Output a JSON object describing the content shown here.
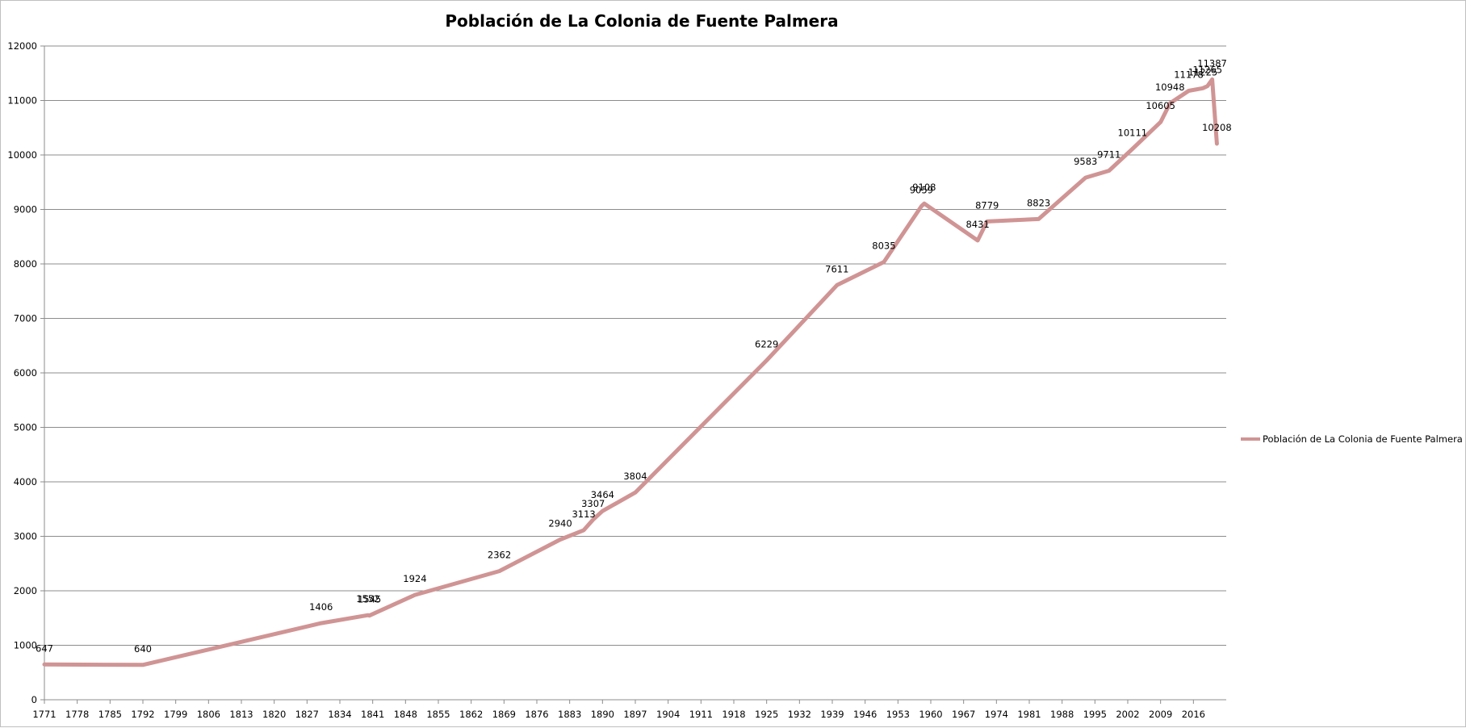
{
  "chart_data": {
    "type": "line",
    "title": "Población de La Colonia de Fuente Palmera",
    "xlabel": "",
    "ylabel": "",
    "xlim": [
      1771,
      2023
    ],
    "ylim": [
      0,
      12000
    ],
    "y_ticks": [
      0,
      1000,
      2000,
      3000,
      4000,
      5000,
      6000,
      7000,
      8000,
      9000,
      10000,
      11000,
      12000
    ],
    "x_ticks": [
      1771,
      1778,
      1785,
      1792,
      1799,
      1806,
      1813,
      1820,
      1827,
      1834,
      1841,
      1848,
      1855,
      1862,
      1869,
      1876,
      1883,
      1890,
      1897,
      1904,
      1911,
      1918,
      1925,
      1932,
      1939,
      1946,
      1953,
      1960,
      1967,
      1974,
      1981,
      1988,
      1995,
      2002,
      2009,
      2016
    ],
    "grid": true,
    "legend": "right",
    "line_color": "#d09494",
    "series": [
      {
        "name": "Población de La Colonia de Fuente Palmera",
        "points": [
          {
            "x": 1771,
            "y": 647
          },
          {
            "x": 1792,
            "y": 640
          },
          {
            "x": 1830,
            "y": 1406
          },
          {
            "x": 1840,
            "y": 1552
          },
          {
            "x": 1840.3,
            "y": 1545
          },
          {
            "x": 1850,
            "y": 1924
          },
          {
            "x": 1868,
            "y": 2362
          },
          {
            "x": 1881,
            "y": 2940
          },
          {
            "x": 1886,
            "y": 3113
          },
          {
            "x": 1888,
            "y": 3307
          },
          {
            "x": 1890,
            "y": 3464
          },
          {
            "x": 1897,
            "y": 3804
          },
          {
            "x": 1925,
            "y": 6229
          },
          {
            "x": 1940,
            "y": 7611
          },
          {
            "x": 1950,
            "y": 8035
          },
          {
            "x": 1958,
            "y": 9059
          },
          {
            "x": 1958.6,
            "y": 9108
          },
          {
            "x": 1970,
            "y": 8431
          },
          {
            "x": 1972,
            "y": 8779
          },
          {
            "x": 1983,
            "y": 8823
          },
          {
            "x": 1993,
            "y": 9583
          },
          {
            "x": 1998,
            "y": 9711
          },
          {
            "x": 2003,
            "y": 10111
          },
          {
            "x": 2009,
            "y": 10605
          },
          {
            "x": 2011,
            "y": 10948
          },
          {
            "x": 2015,
            "y": 11178
          },
          {
            "x": 2018,
            "y": 11225
          },
          {
            "x": 2019,
            "y": 11265
          },
          {
            "x": 2020,
            "y": 11387
          },
          {
            "x": 2021,
            "y": 10208
          }
        ]
      }
    ]
  }
}
